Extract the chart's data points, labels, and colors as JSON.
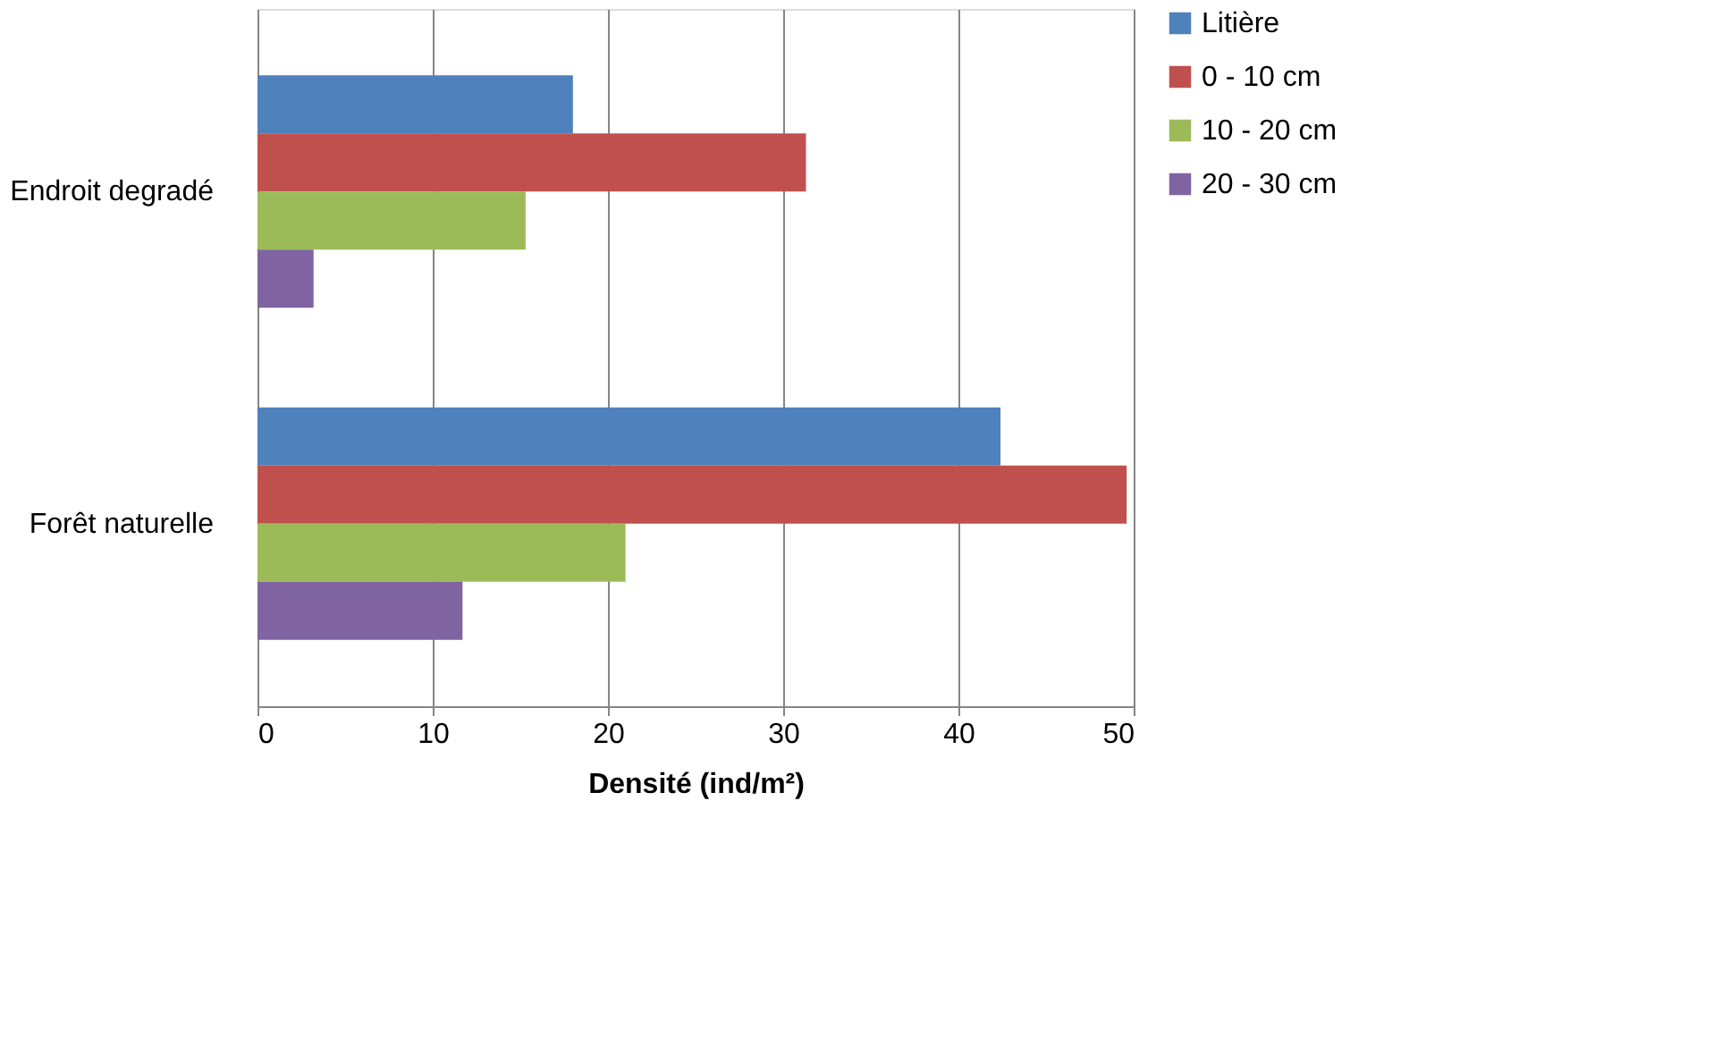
{
  "chart_data": {
    "type": "bar",
    "orientation": "horizontal",
    "xlabel": "Densité (ind/m²)",
    "categories": [
      "Endroit degradé",
      "Forêt naturelle"
    ],
    "series": [
      {
        "name": "Litière",
        "color": "#4f81bd",
        "values": [
          18.0,
          42.4
        ]
      },
      {
        "name": "0 - 10 cm",
        "color": "#c0504d",
        "values": [
          31.3,
          49.6
        ]
      },
      {
        "name": "10 - 20 cm",
        "color": "#9bbb59",
        "values": [
          15.3,
          21.0
        ]
      },
      {
        "name": "20 - 30 cm",
        "color": "#8064a2",
        "values": [
          3.2,
          11.7
        ]
      }
    ],
    "xlim": [
      0,
      50
    ],
    "xticks": [
      0,
      10,
      20,
      30,
      40,
      50
    ],
    "grid": "x",
    "legend": "right"
  }
}
